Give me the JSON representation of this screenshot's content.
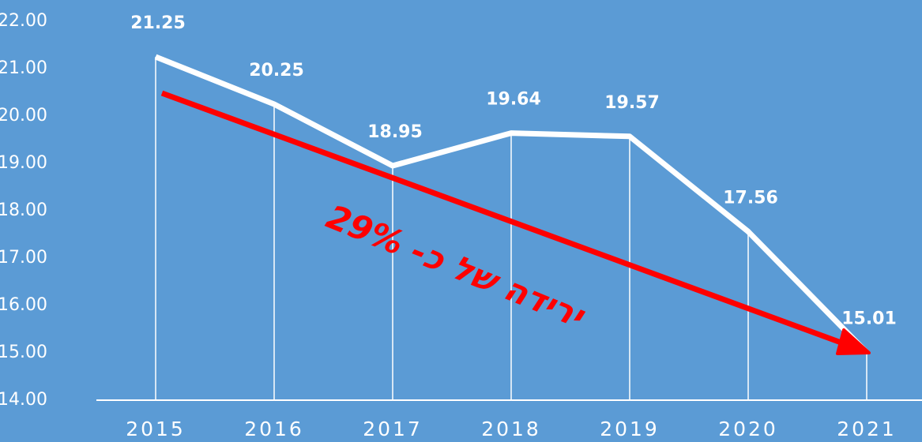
{
  "chart_data": {
    "type": "line",
    "categories": [
      "2015",
      "2016",
      "2017",
      "2018",
      "2019",
      "2020",
      "2021"
    ],
    "values": [
      21.25,
      20.25,
      18.95,
      19.64,
      19.57,
      17.56,
      15.01
    ],
    "color": "#ffffff",
    "ylim": [
      14,
      22
    ],
    "yticks": [
      {
        "value": 14,
        "label": "14.00"
      },
      {
        "value": 15,
        "label": "15.00"
      },
      {
        "value": 16,
        "label": "16.00"
      },
      {
        "value": 17,
        "label": "17.00"
      },
      {
        "value": 18,
        "label": "18.00"
      },
      {
        "value": 19,
        "label": "19.00"
      },
      {
        "value": 20,
        "label": "20.00"
      },
      {
        "value": 21,
        "label": "21.00"
      },
      {
        "value": 22,
        "label": "22.00"
      }
    ],
    "annotation": "ירידה של כ- 29%",
    "annotation_color": "#ff0000"
  }
}
